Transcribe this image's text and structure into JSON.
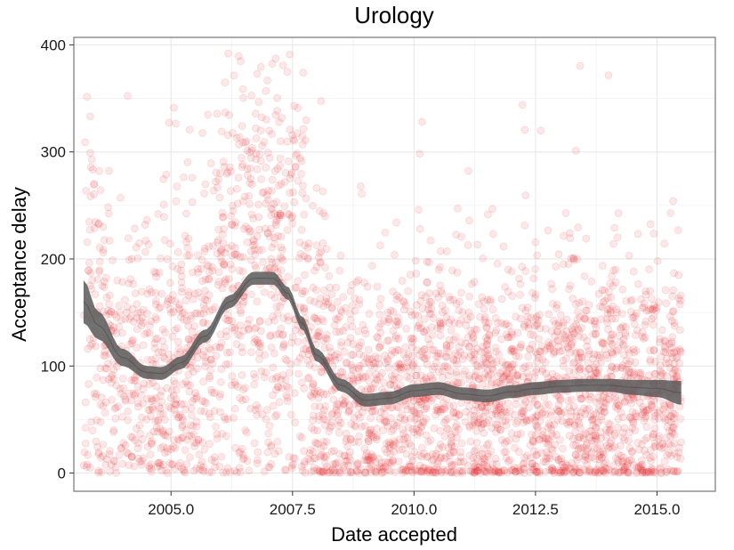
{
  "chart_data": {
    "type": "scatter",
    "title": "Urology",
    "xlabel": "Date accepted",
    "ylabel": "Acceptance delay",
    "xlim": [
      2003.0,
      2016.2
    ],
    "ylim": [
      -17,
      407
    ],
    "x_ticks": [
      2005.0,
      2007.5,
      2010.0,
      2012.5,
      2015.0
    ],
    "x_tick_labels": [
      "2005.0",
      "2007.5",
      "2010.0",
      "2012.5",
      "2015.0"
    ],
    "y_ticks": [
      0,
      100,
      200,
      300,
      400
    ],
    "y_tick_labels": [
      "0",
      "100",
      "200",
      "300",
      "400"
    ],
    "grid": true,
    "point_color": "#e41a1c",
    "point_alpha": 0.1,
    "points_x_range": [
      2003.2,
      2015.5
    ],
    "smooth": {
      "color": "#595959",
      "x": [
        2003.2,
        2003.5,
        2004.0,
        2004.5,
        2004.8,
        2005.2,
        2005.7,
        2006.2,
        2006.7,
        2007.1,
        2007.4,
        2007.7,
        2008.0,
        2008.5,
        2009.0,
        2009.5,
        2010.0,
        2010.5,
        2011.0,
        2011.5,
        2012.0,
        2012.5,
        2013.0,
        2013.5,
        2014.0,
        2014.5,
        2015.0,
        2015.5
      ],
      "y": [
        160,
        138,
        108,
        94,
        93,
        103,
        128,
        160,
        182,
        182,
        168,
        140,
        110,
        82,
        68,
        70,
        77,
        79,
        74,
        72,
        76,
        79,
        81,
        82,
        82,
        80,
        79,
        75
      ],
      "ci_halfwidth": [
        20,
        13,
        8,
        6,
        6,
        6,
        6,
        6,
        6,
        6,
        6,
        6,
        6,
        6,
        6,
        6,
        6,
        6,
        6,
        6,
        6,
        6,
        6,
        6,
        6,
        7,
        8,
        11
      ]
    }
  }
}
